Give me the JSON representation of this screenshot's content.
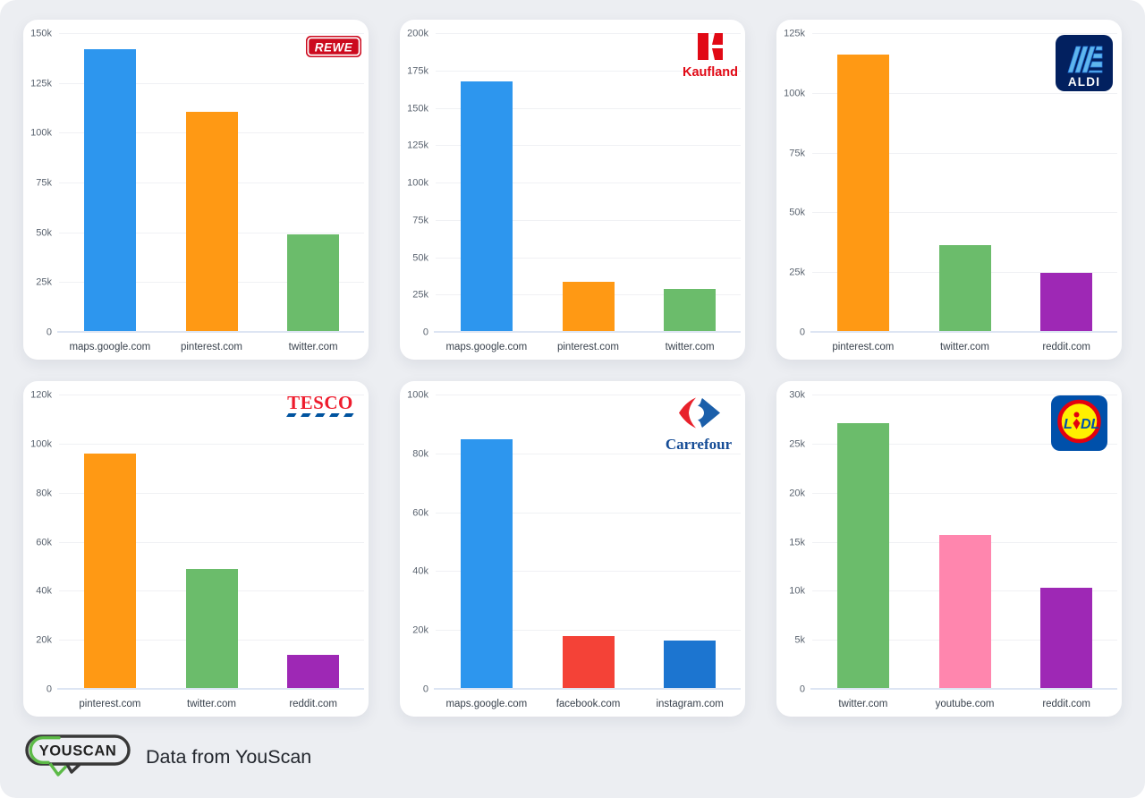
{
  "footer": {
    "logo_text": "YOUSCAN",
    "caption": "Data from YouScan"
  },
  "palette": {
    "maps_blue": "#2D96EE",
    "orange": "#FF9914",
    "green": "#6BBC6B",
    "purple": "#9E28B5",
    "facebook_red": "#F44237",
    "instagram_blue": "#1C75D0",
    "pink": "#FF86AE",
    "page_background": "#ECEEF2",
    "card_background": "#FFFFFF"
  },
  "chart_data": [
    {
      "type": "bar",
      "brand": "REWE",
      "logo": "rewe",
      "title": "",
      "xlabel": "",
      "ylabel": "",
      "legend": false,
      "grid": true,
      "categories": [
        "maps.google.com",
        "pinterest.com",
        "twitter.com"
      ],
      "values": [
        141500,
        110000,
        48500
      ],
      "bar_colors": [
        "#2D96EE",
        "#FF9914",
        "#6BBC6B"
      ],
      "ylim": [
        0,
        150000
      ],
      "ytick_step": 25000,
      "ytick_labels": [
        "0",
        "25k",
        "50k",
        "75k",
        "100k",
        "125k",
        "150k"
      ]
    },
    {
      "type": "bar",
      "brand": "Kaufland",
      "logo": "kaufland",
      "title": "",
      "xlabel": "",
      "ylabel": "",
      "legend": false,
      "grid": true,
      "categories": [
        "maps.google.com",
        "pinterest.com",
        "twitter.com"
      ],
      "values": [
        167000,
        33000,
        28000
      ],
      "bar_colors": [
        "#2D96EE",
        "#FF9914",
        "#6BBC6B"
      ],
      "ylim": [
        0,
        200000
      ],
      "ytick_step": 25000,
      "ytick_labels": [
        "0",
        "25k",
        "50k",
        "75k",
        "100k",
        "125k",
        "150k",
        "175k",
        "200k"
      ]
    },
    {
      "type": "bar",
      "brand": "ALDI",
      "logo": "aldi",
      "title": "",
      "xlabel": "",
      "ylabel": "",
      "legend": false,
      "grid": true,
      "categories": [
        "pinterest.com",
        "twitter.com",
        "reddit.com"
      ],
      "values": [
        115500,
        36000,
        24500
      ],
      "bar_colors": [
        "#FF9914",
        "#6BBC6B",
        "#9E28B5"
      ],
      "ylim": [
        0,
        125000
      ],
      "ytick_step": 25000,
      "ytick_labels": [
        "0",
        "25k",
        "50k",
        "75k",
        "100k",
        "125k"
      ]
    },
    {
      "type": "bar",
      "brand": "TESCO",
      "logo": "tesco",
      "title": "",
      "xlabel": "",
      "ylabel": "",
      "legend": false,
      "grid": true,
      "categories": [
        "pinterest.com",
        "twitter.com",
        "reddit.com"
      ],
      "values": [
        95500,
        48500,
        13500
      ],
      "bar_colors": [
        "#FF9914",
        "#6BBC6B",
        "#9E28B5"
      ],
      "ylim": [
        0,
        120000
      ],
      "ytick_step": 20000,
      "ytick_labels": [
        "0",
        "20k",
        "40k",
        "60k",
        "80k",
        "100k",
        "120k"
      ]
    },
    {
      "type": "bar",
      "brand": "Carrefour",
      "logo": "carrefour",
      "title": "",
      "xlabel": "",
      "ylabel": "",
      "legend": false,
      "grid": true,
      "categories": [
        "maps.google.com",
        "facebook.com",
        "instagram.com"
      ],
      "values": [
        84500,
        17500,
        16000
      ],
      "bar_colors": [
        "#2D96EE",
        "#F44237",
        "#1C75D0"
      ],
      "ylim": [
        0,
        100000
      ],
      "ytick_step": 20000,
      "ytick_labels": [
        "0",
        "20k",
        "40k",
        "60k",
        "80k",
        "100k"
      ]
    },
    {
      "type": "bar",
      "brand": "LIDL",
      "logo": "lidl",
      "title": "",
      "xlabel": "",
      "ylabel": "",
      "legend": false,
      "grid": true,
      "categories": [
        "twitter.com",
        "youtube.com",
        "reddit.com"
      ],
      "values": [
        27000,
        15600,
        10200
      ],
      "bar_colors": [
        "#6BBC6B",
        "#FF86AE",
        "#9E28B5"
      ],
      "ylim": [
        0,
        30000
      ],
      "ytick_step": 5000,
      "ytick_labels": [
        "0",
        "5k",
        "10k",
        "15k",
        "20k",
        "25k",
        "30k"
      ]
    }
  ]
}
